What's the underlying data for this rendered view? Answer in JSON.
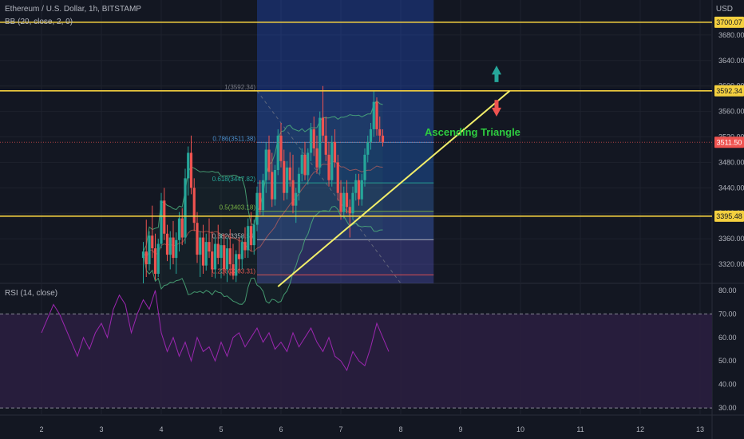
{
  "header": {
    "symbol": "Ethereum / U.S. Dollar, 1h, BITSTAMP",
    "bb": "BB (20, close, 2, 0)",
    "rsi": "RSI (14, close)",
    "currency": "USD"
  },
  "colors": {
    "bg": "#131722",
    "grid": "#1e222d",
    "up": "#26a69a",
    "down": "#ef5350",
    "hline": "#f4d03f",
    "trend": "#f2ee6a",
    "rsi": "#9c27b0",
    "rsi_band": "#2a1e3f",
    "annotation": "#2ecc40",
    "bb": "#4caf7d"
  },
  "chart_data": [
    {
      "type": "candlestick",
      "title": "Ethereum / U.S. Dollar, 1h, BITSTAMP",
      "indicator": "BB (20, close, 2, 0)",
      "x_ticks": [
        "2",
        "3",
        "4",
        "5",
        "6",
        "7",
        "8",
        "9",
        "10",
        "11",
        "12",
        "13"
      ],
      "y_ticks": [
        "3700.00",
        "3680.00",
        "3640.00",
        "3600.00",
        "3560.00",
        "3520.00",
        "3480.00",
        "3440.00",
        "3400.00",
        "3360.00",
        "3320.00"
      ],
      "ylim": [
        3290,
        3735
      ],
      "price_labels": [
        {
          "text": "3700.07",
          "value": 3700.07,
          "kind": "level"
        },
        {
          "text": "3592.34",
          "value": 3592.34,
          "kind": "level"
        },
        {
          "text": "3511.50",
          "value": 3511.5,
          "kind": "last"
        },
        {
          "text": "3395.48",
          "value": 3395.48,
          "kind": "level"
        }
      ],
      "horizontal_levels": [
        3700.07,
        3592.34,
        3395.48
      ],
      "fib_retracement": [
        {
          "label": "1(3592.34)",
          "value": 3592.34
        },
        {
          "label": "0.786(3511.38)",
          "value": 3511.38
        },
        {
          "label": "0.618(3447.82)",
          "value": 3447.82
        },
        {
          "label": "0.5(3403.18)",
          "value": 3403.18
        },
        {
          "label": "0.382(3358.54)",
          "value": 3358.54
        },
        {
          "label": "0.236(3303.31)",
          "value": 3303.31
        }
      ],
      "trendline": {
        "start": {
          "x": 5.95,
          "y": 3285
        },
        "end": {
          "x": 9.82,
          "y": 3592.34
        }
      },
      "annotation": "Ascending Triangle",
      "arrows": [
        "up",
        "down"
      ],
      "highlight_range": {
        "x_from": 5.6,
        "x_to": 8.55
      },
      "candles": [
        {
          "x": 3.7,
          "o": 3330,
          "h": 3355,
          "l": 3290,
          "c": 3340
        },
        {
          "x": 3.75,
          "o": 3340,
          "h": 3390,
          "l": 3300,
          "c": 3320
        },
        {
          "x": 3.8,
          "o": 3320,
          "h": 3372,
          "l": 3310,
          "c": 3365
        },
        {
          "x": 3.85,
          "o": 3365,
          "h": 3412,
          "l": 3330,
          "c": 3345
        },
        {
          "x": 3.9,
          "o": 3345,
          "h": 3368,
          "l": 3295,
          "c": 3305
        },
        {
          "x": 3.95,
          "o": 3305,
          "h": 3360,
          "l": 3300,
          "c": 3352
        },
        {
          "x": 4.0,
          "o": 3352,
          "h": 3432,
          "l": 3345,
          "c": 3420
        },
        {
          "x": 4.05,
          "o": 3420,
          "h": 3440,
          "l": 3358,
          "c": 3368
        },
        {
          "x": 4.1,
          "o": 3368,
          "h": 3382,
          "l": 3325,
          "c": 3335
        },
        {
          "x": 4.15,
          "o": 3335,
          "h": 3372,
          "l": 3312,
          "c": 3362
        },
        {
          "x": 4.2,
          "o": 3362,
          "h": 3388,
          "l": 3320,
          "c": 3330
        },
        {
          "x": 4.25,
          "o": 3330,
          "h": 3370,
          "l": 3305,
          "c": 3358
        },
        {
          "x": 4.3,
          "o": 3358,
          "h": 3402,
          "l": 3340,
          "c": 3392
        },
        {
          "x": 4.35,
          "o": 3392,
          "h": 3408,
          "l": 3350,
          "c": 3362
        },
        {
          "x": 4.4,
          "o": 3362,
          "h": 3470,
          "l": 3352,
          "c": 3455
        },
        {
          "x": 4.45,
          "o": 3455,
          "h": 3505,
          "l": 3428,
          "c": 3495
        },
        {
          "x": 4.5,
          "o": 3495,
          "h": 3522,
          "l": 3430,
          "c": 3440
        },
        {
          "x": 4.55,
          "o": 3440,
          "h": 3455,
          "l": 3372,
          "c": 3385
        },
        {
          "x": 4.6,
          "o": 3385,
          "h": 3402,
          "l": 3322,
          "c": 3335
        },
        {
          "x": 4.65,
          "o": 3335,
          "h": 3372,
          "l": 3300,
          "c": 3362
        },
        {
          "x": 4.7,
          "o": 3362,
          "h": 3382,
          "l": 3305,
          "c": 3318
        },
        {
          "x": 4.75,
          "o": 3318,
          "h": 3368,
          "l": 3310,
          "c": 3355
        },
        {
          "x": 4.8,
          "o": 3355,
          "h": 3392,
          "l": 3330,
          "c": 3340
        },
        {
          "x": 4.85,
          "o": 3340,
          "h": 3372,
          "l": 3300,
          "c": 3312
        },
        {
          "x": 4.9,
          "o": 3312,
          "h": 3362,
          "l": 3298,
          "c": 3352
        },
        {
          "x": 4.95,
          "o": 3352,
          "h": 3382,
          "l": 3320,
          "c": 3330
        },
        {
          "x": 5.0,
          "o": 3330,
          "h": 3368,
          "l": 3298,
          "c": 3350
        },
        {
          "x": 5.05,
          "o": 3350,
          "h": 3368,
          "l": 3302,
          "c": 3312
        },
        {
          "x": 5.1,
          "o": 3312,
          "h": 3362,
          "l": 3292,
          "c": 3345
        },
        {
          "x": 5.15,
          "o": 3345,
          "h": 3375,
          "l": 3302,
          "c": 3320
        },
        {
          "x": 5.2,
          "o": 3320,
          "h": 3352,
          "l": 3296,
          "c": 3302
        },
        {
          "x": 5.25,
          "o": 3302,
          "h": 3342,
          "l": 3292,
          "c": 3336
        },
        {
          "x": 5.3,
          "o": 3336,
          "h": 3362,
          "l": 3308,
          "c": 3328
        },
        {
          "x": 5.35,
          "o": 3328,
          "h": 3365,
          "l": 3312,
          "c": 3355
        },
        {
          "x": 5.4,
          "o": 3355,
          "h": 3378,
          "l": 3330,
          "c": 3342
        },
        {
          "x": 5.45,
          "o": 3342,
          "h": 3392,
          "l": 3330,
          "c": 3380
        },
        {
          "x": 5.5,
          "o": 3380,
          "h": 3402,
          "l": 3340,
          "c": 3350
        },
        {
          "x": 5.55,
          "o": 3350,
          "h": 3390,
          "l": 3335,
          "c": 3382
        },
        {
          "x": 5.6,
          "o": 3382,
          "h": 3442,
          "l": 3372,
          "c": 3432
        },
        {
          "x": 5.65,
          "o": 3432,
          "h": 3452,
          "l": 3398,
          "c": 3405
        },
        {
          "x": 5.7,
          "o": 3405,
          "h": 3462,
          "l": 3395,
          "c": 3452
        },
        {
          "x": 5.75,
          "o": 3452,
          "h": 3512,
          "l": 3432,
          "c": 3500
        },
        {
          "x": 5.8,
          "o": 3500,
          "h": 3522,
          "l": 3452,
          "c": 3465
        },
        {
          "x": 5.85,
          "o": 3465,
          "h": 3495,
          "l": 3410,
          "c": 3422
        },
        {
          "x": 5.9,
          "o": 3422,
          "h": 3476,
          "l": 3412,
          "c": 3468
        },
        {
          "x": 5.95,
          "o": 3468,
          "h": 3532,
          "l": 3460,
          "c": 3522
        },
        {
          "x": 6.0,
          "o": 3522,
          "h": 3542,
          "l": 3472,
          "c": 3482
        },
        {
          "x": 6.05,
          "o": 3482,
          "h": 3500,
          "l": 3420,
          "c": 3432
        },
        {
          "x": 6.1,
          "o": 3432,
          "h": 3482,
          "l": 3422,
          "c": 3472
        },
        {
          "x": 6.15,
          "o": 3472,
          "h": 3496,
          "l": 3442,
          "c": 3452
        },
        {
          "x": 6.2,
          "o": 3452,
          "h": 3492,
          "l": 3400,
          "c": 3412
        },
        {
          "x": 6.25,
          "o": 3412,
          "h": 3440,
          "l": 3385,
          "c": 3432
        },
        {
          "x": 6.3,
          "o": 3432,
          "h": 3472,
          "l": 3420,
          "c": 3462
        },
        {
          "x": 6.35,
          "o": 3462,
          "h": 3502,
          "l": 3450,
          "c": 3492
        },
        {
          "x": 6.4,
          "o": 3492,
          "h": 3512,
          "l": 3452,
          "c": 3460
        },
        {
          "x": 6.45,
          "o": 3460,
          "h": 3502,
          "l": 3445,
          "c": 3495
        },
        {
          "x": 6.5,
          "o": 3495,
          "h": 3542,
          "l": 3482,
          "c": 3532
        },
        {
          "x": 6.55,
          "o": 3532,
          "h": 3552,
          "l": 3490,
          "c": 3502
        },
        {
          "x": 6.6,
          "o": 3502,
          "h": 3522,
          "l": 3462,
          "c": 3472
        },
        {
          "x": 6.65,
          "o": 3472,
          "h": 3560,
          "l": 3462,
          "c": 3550
        },
        {
          "x": 6.7,
          "o": 3550,
          "h": 3600,
          "l": 3512,
          "c": 3522
        },
        {
          "x": 6.75,
          "o": 3522,
          "h": 3552,
          "l": 3482,
          "c": 3492
        },
        {
          "x": 6.8,
          "o": 3492,
          "h": 3512,
          "l": 3442,
          "c": 3452
        },
        {
          "x": 6.85,
          "o": 3452,
          "h": 3522,
          "l": 3442,
          "c": 3512
        },
        {
          "x": 6.9,
          "o": 3512,
          "h": 3532,
          "l": 3472,
          "c": 3480
        },
        {
          "x": 6.95,
          "o": 3480,
          "h": 3492,
          "l": 3420,
          "c": 3432
        },
        {
          "x": 7.0,
          "o": 3432,
          "h": 3452,
          "l": 3390,
          "c": 3402
        },
        {
          "x": 7.05,
          "o": 3402,
          "h": 3442,
          "l": 3392,
          "c": 3432
        },
        {
          "x": 7.1,
          "o": 3432,
          "h": 3452,
          "l": 3400,
          "c": 3410
        },
        {
          "x": 7.15,
          "o": 3410,
          "h": 3422,
          "l": 3362,
          "c": 3400
        },
        {
          "x": 7.2,
          "o": 3400,
          "h": 3442,
          "l": 3390,
          "c": 3432
        },
        {
          "x": 7.25,
          "o": 3432,
          "h": 3462,
          "l": 3420,
          "c": 3452
        },
        {
          "x": 7.3,
          "o": 3452,
          "h": 3462,
          "l": 3412,
          "c": 3422
        },
        {
          "x": 7.35,
          "o": 3422,
          "h": 3462,
          "l": 3412,
          "c": 3452
        },
        {
          "x": 7.4,
          "o": 3452,
          "h": 3502,
          "l": 3442,
          "c": 3492
        },
        {
          "x": 7.45,
          "o": 3492,
          "h": 3522,
          "l": 3480,
          "c": 3512
        },
        {
          "x": 7.5,
          "o": 3512,
          "h": 3542,
          "l": 3500,
          "c": 3532
        },
        {
          "x": 7.55,
          "o": 3532,
          "h": 3592,
          "l": 3520,
          "c": 3575
        },
        {
          "x": 7.6,
          "o": 3575,
          "h": 3582,
          "l": 3522,
          "c": 3532
        },
        {
          "x": 7.65,
          "o": 3532,
          "h": 3552,
          "l": 3512,
          "c": 3522
        },
        {
          "x": 7.7,
          "o": 3522,
          "h": 3532,
          "l": 3505,
          "c": 3512
        }
      ]
    },
    {
      "type": "line",
      "title": "RSI (14, close)",
      "y_ticks": [
        "80.00",
        "70.00",
        "60.00",
        "50.00",
        "40.00",
        "30.00"
      ],
      "ylim": [
        27,
        83
      ],
      "band": [
        30,
        70
      ],
      "x": [
        2.0,
        2.1,
        2.2,
        2.3,
        2.4,
        2.5,
        2.6,
        2.7,
        2.8,
        2.9,
        3.0,
        3.1,
        3.2,
        3.3,
        3.4,
        3.5,
        3.6,
        3.7,
        3.8,
        3.9,
        4.0,
        4.1,
        4.2,
        4.3,
        4.4,
        4.5,
        4.6,
        4.7,
        4.8,
        4.9,
        5.0,
        5.1,
        5.2,
        5.3,
        5.4,
        5.5,
        5.6,
        5.7,
        5.8,
        5.9,
        6.0,
        6.1,
        6.2,
        6.3,
        6.4,
        6.5,
        6.6,
        6.7,
        6.8,
        6.9,
        7.0,
        7.1,
        7.2,
        7.3,
        7.4,
        7.5,
        7.6,
        7.7,
        7.8
      ],
      "values": [
        62,
        68,
        74,
        70,
        64,
        58,
        52,
        60,
        55,
        62,
        66,
        60,
        72,
        78,
        74,
        62,
        70,
        76,
        72,
        80,
        62,
        54,
        60,
        52,
        58,
        50,
        60,
        54,
        56,
        50,
        58,
        52,
        60,
        62,
        56,
        60,
        64,
        58,
        62,
        55,
        58,
        54,
        62,
        56,
        60,
        64,
        58,
        54,
        60,
        52,
        50,
        46,
        54,
        50,
        48,
        56,
        66,
        60,
        54
      ]
    }
  ]
}
